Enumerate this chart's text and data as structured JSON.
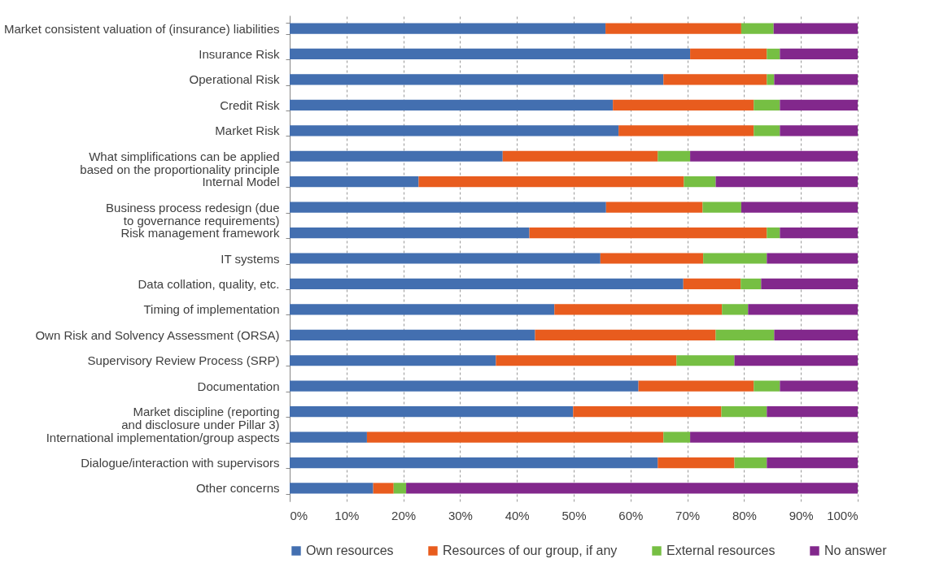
{
  "chart_data": {
    "type": "bar",
    "orientation": "horizontal",
    "stacked": true,
    "categories": [
      "Market consistent valuation of (insurance) liabilities",
      "Insurance Risk",
      "Operational Risk",
      "Credit Risk",
      "Market Risk",
      "What simplifications can be applied based on the proportionality principle",
      "Internal Model",
      "Business process redesign (due to governance requirements)",
      "Risk management framework",
      "IT systems",
      "Data collation, quality, etc.",
      "Timing of implementation",
      "Own Risk and Solvency Assessment (ORSA)",
      "Supervisory Review Process (SRP)",
      "Documentation",
      "Market discipline (reporting and disclosure under Pillar 3)",
      "International implementation/group aspects",
      "Dialogue/interaction with supervisors",
      "Other concerns"
    ],
    "series": [
      {
        "name": "Own resources",
        "color": "#436fb0",
        "values": [
          55.6,
          70.5,
          65.8,
          56.9,
          57.9,
          37.5,
          22.7,
          55.7,
          42.2,
          54.7,
          69.3,
          46.6,
          43.2,
          36.3,
          61.4,
          49.9,
          13.6,
          64.8,
          14.7
        ]
      },
      {
        "name": "Resources of our group, if any",
        "color": "#e85c1e",
        "values": [
          23.9,
          13.5,
          18.2,
          24.8,
          23.8,
          27.3,
          46.7,
          17.0,
          41.8,
          18.1,
          10.1,
          29.5,
          31.8,
          31.8,
          20.3,
          26.1,
          52.2,
          13.5,
          3.6
        ]
      },
      {
        "name": "External resources",
        "color": "#76bf43",
        "values": [
          5.7,
          2.3,
          1.3,
          4.6,
          4.6,
          5.7,
          5.6,
          6.8,
          2.3,
          11.2,
          3.6,
          4.6,
          10.3,
          10.2,
          4.6,
          8.0,
          4.7,
          5.7,
          2.2
        ]
      },
      {
        "name": "No answer",
        "color": "#82288c",
        "values": [
          14.8,
          13.7,
          14.7,
          13.7,
          13.7,
          29.5,
          25.0,
          20.5,
          13.7,
          16.0,
          17.0,
          19.3,
          14.7,
          21.7,
          13.7,
          16.0,
          29.5,
          16.0,
          79.5
        ]
      }
    ],
    "xlim": [
      0,
      100
    ],
    "xticks": [
      {
        "value": 0,
        "label": "0%"
      },
      {
        "value": 10,
        "label": "10%"
      },
      {
        "value": 20,
        "label": "20%"
      },
      {
        "value": 30,
        "label": "30%"
      },
      {
        "value": 40,
        "label": "40%"
      },
      {
        "value": 50,
        "label": "50%"
      },
      {
        "value": 60,
        "label": "60%"
      },
      {
        "value": 70,
        "label": "70%"
      },
      {
        "value": 80,
        "label": "80%"
      },
      {
        "value": 90,
        "label": "90%"
      },
      {
        "value": 100,
        "label": "100%"
      }
    ],
    "grid": "x",
    "legend": "bottom"
  }
}
